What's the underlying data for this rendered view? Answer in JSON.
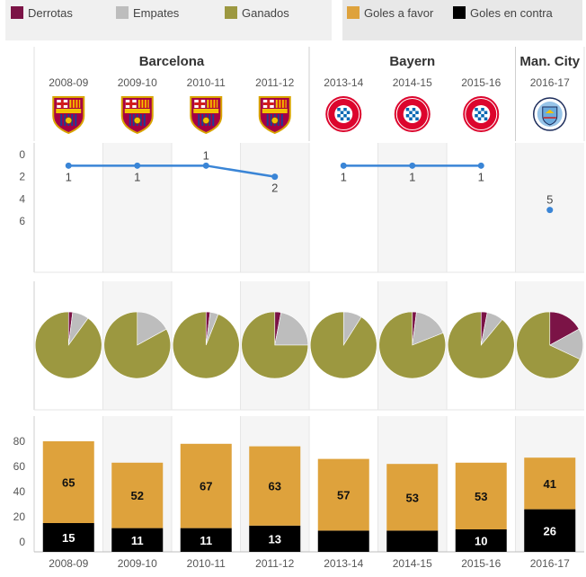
{
  "legend": {
    "results": [
      {
        "label": "Derrotas",
        "color": "#7b1346"
      },
      {
        "label": "Empates",
        "color": "#bdbdbd"
      },
      {
        "label": "Ganados",
        "color": "#9c9840"
      }
    ],
    "goals": [
      {
        "label": "Goles a favor",
        "color": "#dea23c"
      },
      {
        "label": "Goles en contra",
        "color": "#000000"
      }
    ]
  },
  "chart_data": [
    {
      "type": "line",
      "clubs": [
        {
          "name": "Barcelona",
          "seasons": [
            "2008-09",
            "2009-10",
            "2010-11",
            "2011-12"
          ],
          "crest": "fc-barcelona-crest"
        },
        {
          "name": "Bayern",
          "seasons": [
            "2013-14",
            "2014-15",
            "2015-16"
          ],
          "crest": "fc-bayern-crest"
        },
        {
          "name": "Man. City",
          "seasons": [
            "2016-17"
          ],
          "crest": "man-city-crest"
        }
      ],
      "categories": [
        "2008-09",
        "2009-10",
        "2010-11",
        "2011-12",
        "2013-14",
        "2014-15",
        "2015-16",
        "2016-17"
      ],
      "values": [
        1,
        1,
        1,
        2,
        1,
        1,
        1,
        5
      ],
      "data_labels": [
        "1",
        "1",
        "1",
        "2",
        "1",
        "1",
        "1",
        "5"
      ],
      "yticks": [
        "0",
        "2",
        "4",
        "6"
      ],
      "ylim": [
        0,
        6
      ],
      "y_reversed": true,
      "color": "#3a85d6"
    },
    {
      "type": "pie",
      "categories": [
        "2008-09",
        "2009-10",
        "2010-11",
        "2011-12",
        "2013-14",
        "2014-15",
        "2015-16",
        "2016-17"
      ],
      "series": [
        {
          "name": "Derrotas",
          "values": [
            2,
            0,
            2,
            3,
            0,
            2,
            3,
            17
          ],
          "color": "#7b1346"
        },
        {
          "name": "Empates",
          "values": [
            8,
            17,
            4,
            22,
            9,
            17,
            8,
            15
          ],
          "color": "#bdbdbd"
        },
        {
          "name": "Ganados",
          "values": [
            90,
            83,
            94,
            75,
            91,
            81,
            89,
            68
          ],
          "color": "#9c9840"
        }
      ]
    },
    {
      "type": "bar",
      "stacked": true,
      "categories": [
        "2008-09",
        "2009-10",
        "2010-11",
        "2011-12",
        "2013-14",
        "2014-15",
        "2015-16",
        "2016-17"
      ],
      "series": [
        {
          "name": "Goles en contra",
          "values": [
            15,
            11,
            11,
            13,
            9,
            9,
            10,
            26
          ],
          "labels": [
            "15",
            "11",
            "11",
            "13",
            "",
            "",
            "10",
            "26"
          ],
          "color": "#000000"
        },
        {
          "name": "Goles a favor",
          "values": [
            65,
            52,
            67,
            63,
            57,
            53,
            53,
            41
          ],
          "labels": [
            "65",
            "52",
            "67",
            "63",
            "57",
            "53",
            "53",
            "41"
          ],
          "color": "#dea23c"
        }
      ],
      "yticks": [
        "0",
        "20",
        "40",
        "60",
        "80"
      ],
      "ylim": [
        0,
        88
      ],
      "shading": "alternate"
    }
  ]
}
